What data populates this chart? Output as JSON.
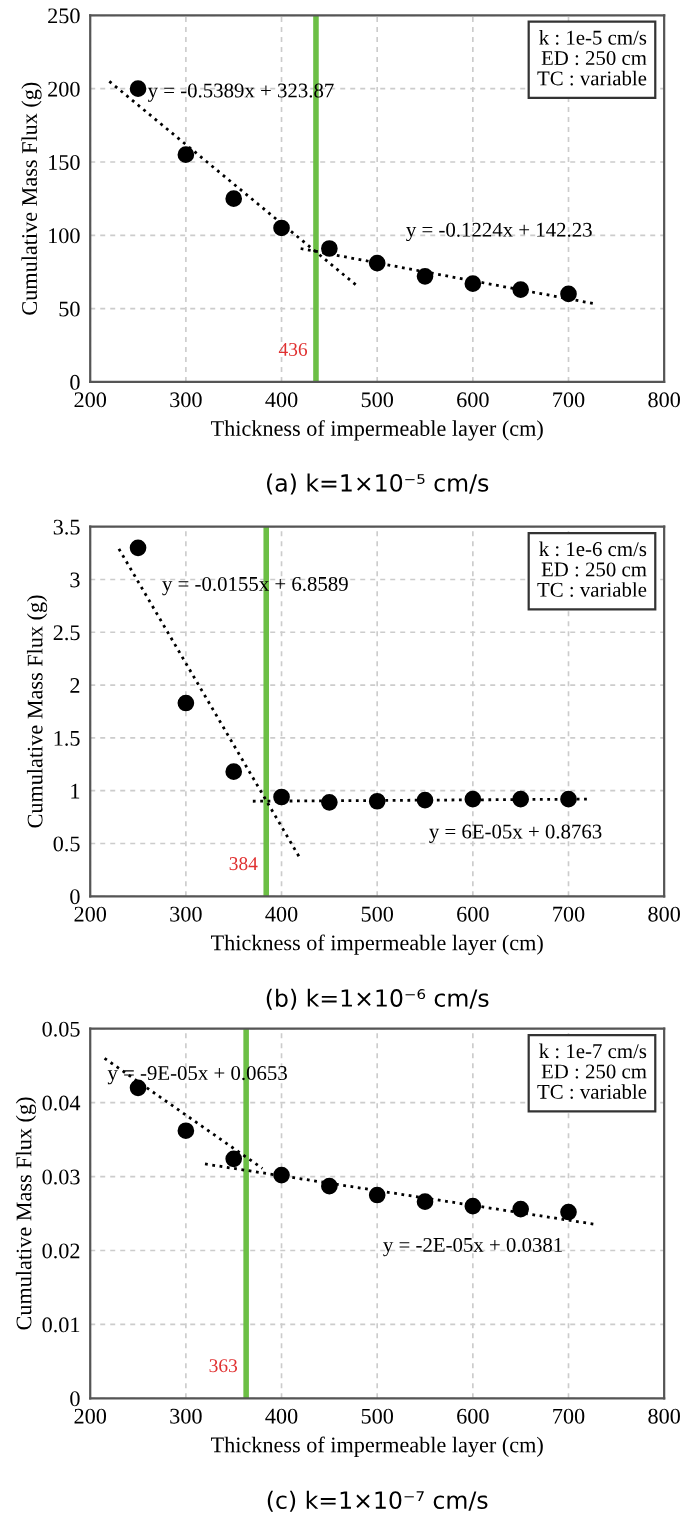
{
  "chart_data": [
    {
      "type": "scatter",
      "xlabel": "Thickness of impermeable layer (cm)",
      "ylabel": "Cumulative Mass Flux (g)",
      "xlim": [
        200,
        800
      ],
      "xticks": [
        200,
        300,
        400,
        500,
        600,
        700,
        800
      ],
      "ylim": [
        0,
        250
      ],
      "yticks": [
        0,
        50,
        100,
        150,
        200,
        250
      ],
      "grid": true,
      "marker": "circle",
      "x": [
        250,
        300,
        350,
        400,
        450,
        500,
        550,
        600,
        650,
        700
      ],
      "series": [
        {
          "color": "#000000",
          "values": [
            200,
            155,
            125,
            105,
            91,
            81,
            72,
            67,
            63,
            60
          ]
        },
        {
          "type": "line",
          "color": "#000000",
          "line_style": "dotted",
          "marker": "none",
          "x": [
            220,
            480
          ],
          "values": [
            205,
            65
          ]
        },
        {
          "type": "line",
          "color": "#000000",
          "line_style": "dotted",
          "marker": "none",
          "x": [
            420,
            730
          ],
          "values": [
            91,
            53
          ]
        }
      ],
      "ref_lines": [
        {
          "axis": "x",
          "value": 436,
          "label": "436",
          "color": "#6cbf45"
        }
      ],
      "annotations": [
        "y = -0.5389x + 323.87",
        "y = -0.1224x + 142.23",
        "k : 1e-5 cm/s\nED : 250 cm\nTC : variable",
        "(a) k=1×10⁻⁵ cm/s"
      ]
    },
    {
      "type": "scatter",
      "xlabel": "Thickness of impermeable layer (cm)",
      "ylabel": "Cumulative Mass Flux (g)",
      "xlim": [
        200,
        800
      ],
      "xticks": [
        200,
        300,
        400,
        500,
        600,
        700,
        800
      ],
      "ylim": [
        0,
        3.5
      ],
      "yticks": [
        0,
        0.5,
        1,
        1.5,
        2,
        2.5,
        3,
        3.5
      ],
      "grid": true,
      "marker": "circle",
      "x": [
        250,
        300,
        350,
        400,
        450,
        500,
        550,
        600,
        650,
        700
      ],
      "series": [
        {
          "color": "#000000",
          "values": [
            3.3,
            1.83,
            1.18,
            0.94,
            0.89,
            0.9,
            0.91,
            0.92,
            0.92,
            0.92
          ]
        },
        {
          "type": "line",
          "color": "#000000",
          "line_style": "dotted",
          "marker": "none",
          "x": [
            230,
            420
          ],
          "values": [
            3.29,
            0.35
          ]
        },
        {
          "type": "line",
          "color": "#000000",
          "line_style": "dotted",
          "marker": "none",
          "x": [
            370,
            720
          ],
          "values": [
            0.9,
            0.92
          ]
        }
      ],
      "ref_lines": [
        {
          "axis": "x",
          "value": 384,
          "label": "384",
          "color": "#6cbf45"
        }
      ],
      "annotations": [
        "y = -0.0155x + 6.8589",
        "y = 6E-05x + 0.8763",
        "k : 1e-6 cm/s\nED : 250 cm\nTC : variable",
        "(b) k=1×10⁻⁶ cm/s"
      ]
    },
    {
      "type": "scatter",
      "xlabel": "Thickness of impermeable layer (cm)",
      "ylabel": "Cumulative Mass Flux (g)",
      "xlim": [
        200,
        800
      ],
      "xticks": [
        200,
        300,
        400,
        500,
        600,
        700,
        800
      ],
      "ylim": [
        0,
        0.05
      ],
      "yticks": [
        0,
        0.01,
        0.02,
        0.03,
        0.04,
        0.05
      ],
      "grid": true,
      "marker": "circle",
      "x": [
        250,
        300,
        350,
        400,
        450,
        500,
        550,
        600,
        650,
        700
      ],
      "series": [
        {
          "color": "#000000",
          "values": [
            0.042,
            0.0362,
            0.0324,
            0.0302,
            0.0287,
            0.0275,
            0.0266,
            0.026,
            0.0256,
            0.0252
          ]
        },
        {
          "type": "line",
          "color": "#000000",
          "line_style": "dotted",
          "marker": "none",
          "x": [
            215,
            380
          ],
          "values": [
            0.046,
            0.0311
          ]
        },
        {
          "type": "line",
          "color": "#000000",
          "line_style": "dotted",
          "marker": "none",
          "x": [
            320,
            730
          ],
          "values": [
            0.0317,
            0.0235
          ]
        }
      ],
      "ref_lines": [
        {
          "axis": "x",
          "value": 363,
          "label": "363",
          "color": "#6cbf45"
        }
      ],
      "annotations": [
        "y = -9E-05x + 0.0653",
        "y = -2E-05x + 0.0381",
        "k : 1e-7 cm/s\nED : 250 cm\nTC : variable",
        "(c) k=1×10⁻⁷ cm/s"
      ]
    }
  ]
}
